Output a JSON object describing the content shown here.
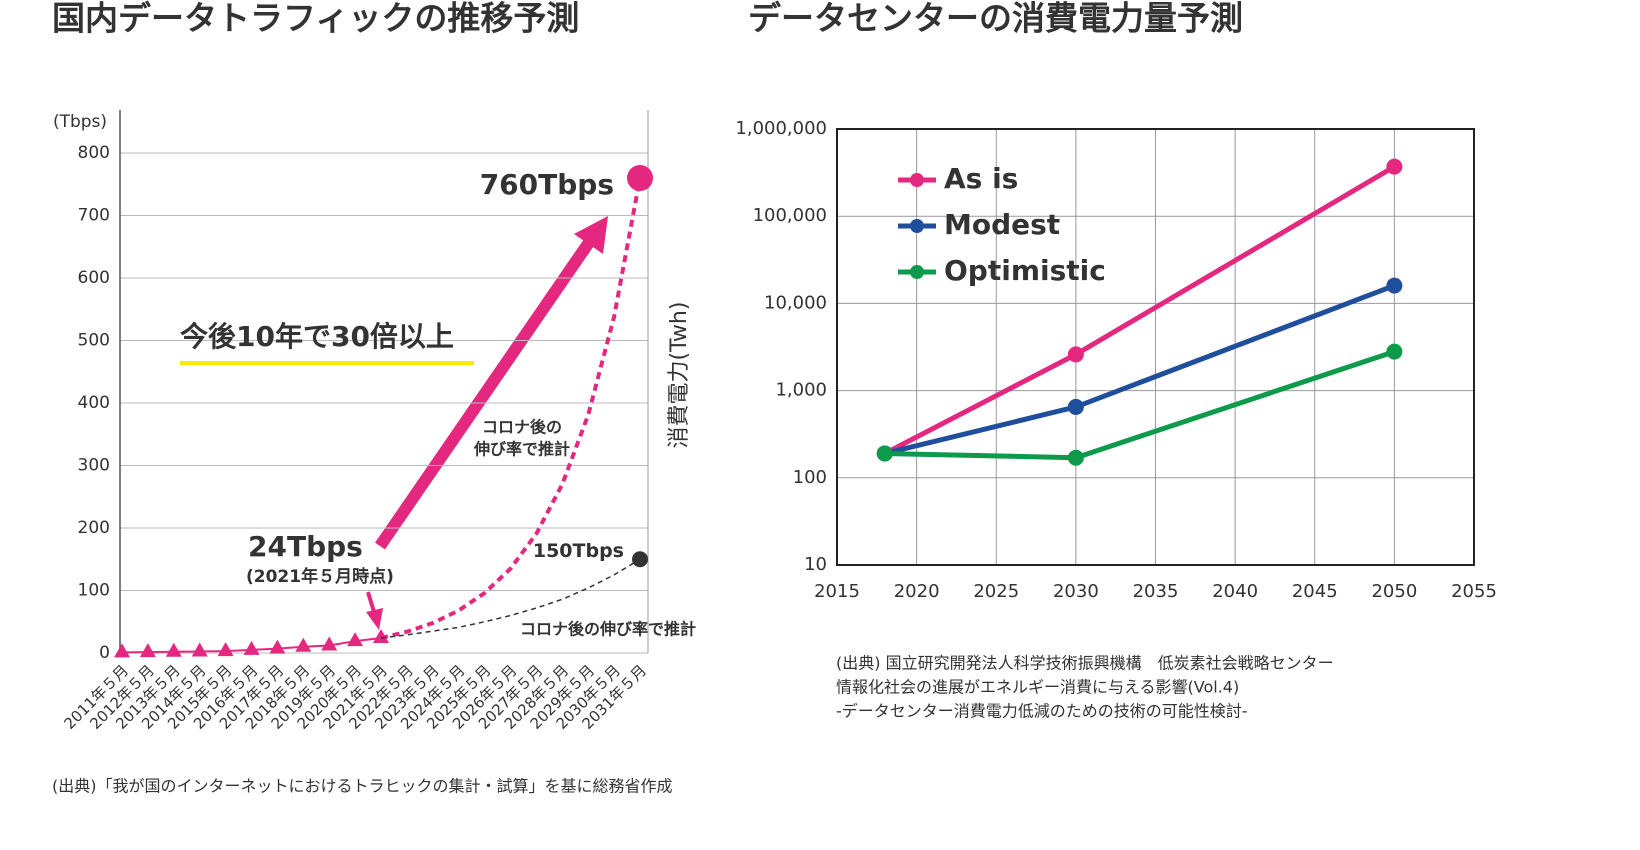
{
  "chart_data": [
    {
      "type": "line",
      "title": "国内データトラフィックの推移予測",
      "ylabel": "(Tbps)",
      "categories": [
        "2011年５月",
        "2012年５月",
        "2013年５月",
        "2014年５月",
        "2015年５月",
        "2016年５月",
        "2017年５月",
        "2018年５月",
        "2019年５月",
        "2020年５月",
        "2021年５月",
        "2022年５月",
        "2023年５月",
        "2024年５月",
        "2025年５月",
        "2026年５月",
        "2027年５月",
        "2028年５月",
        "2029年５月",
        "2030年５月",
        "2031年５月"
      ],
      "ylim": [
        0,
        800
      ],
      "yticks": [
        0,
        100,
        200,
        300,
        400,
        500,
        600,
        700,
        800
      ],
      "grid": true,
      "series": [
        {
          "color": "#e5287f",
          "marker": "triangle",
          "dashed": false,
          "values": [
            1,
            1.5,
            2,
            2.5,
            3,
            5,
            7,
            10,
            12,
            19,
            24,
            null,
            null,
            null,
            null,
            null,
            null,
            null,
            null,
            null,
            null
          ],
          "value_labels": [
            null,
            null,
            null,
            null,
            null,
            null,
            null,
            null,
            null,
            null,
            "24Tbps",
            null,
            null,
            null,
            null,
            null,
            null,
            null,
            null,
            null,
            null
          ]
        },
        {
          "color": "#e5287f",
          "marker": "end-circle",
          "dashed": true,
          "values": [
            null,
            null,
            null,
            null,
            null,
            null,
            null,
            null,
            null,
            null,
            24,
            34,
            48,
            68,
            96,
            135,
            191,
            270,
            381,
            538,
            760
          ],
          "value_labels": [
            null,
            null,
            null,
            null,
            null,
            null,
            null,
            null,
            null,
            null,
            null,
            null,
            null,
            null,
            null,
            null,
            null,
            null,
            null,
            null,
            "760Tbps"
          ]
        },
        {
          "color": "#333333",
          "marker": "end-circle",
          "dashed": true,
          "values": [
            null,
            null,
            null,
            null,
            null,
            null,
            null,
            null,
            null,
            null,
            24,
            29,
            35,
            41,
            50,
            60,
            72,
            86,
            104,
            125,
            150
          ],
          "value_labels": [
            null,
            null,
            null,
            null,
            null,
            null,
            null,
            null,
            null,
            null,
            null,
            null,
            null,
            null,
            null,
            null,
            null,
            null,
            null,
            null,
            "150Tbps"
          ]
        }
      ],
      "annotations": [
        "今後10年で30倍以上",
        "(2021年５月時点)",
        "コロナ後の",
        "伸び率で推計",
        "コロナ後の伸び率で推計"
      ],
      "source": [
        "(出典)「我が国のインターネットにおけるトラヒックの集計・試算」を基に総務省作成"
      ]
    },
    {
      "type": "line",
      "title": "データセンターの消費電力量予測",
      "ylabel": "消費電力(Twh)",
      "log_y": true,
      "x": [
        2018,
        2030,
        2050
      ],
      "xlim": [
        2015,
        2055
      ],
      "xticks": [
        2015,
        2020,
        2025,
        2030,
        2035,
        2040,
        2045,
        2050,
        2055
      ],
      "ylim": [
        10,
        1000000
      ],
      "yticks": [
        10,
        100,
        {
          "value": 1000,
          "label": "1,000"
        },
        {
          "value": 10000,
          "label": "10,000"
        },
        {
          "value": 100000,
          "label": "100,000"
        },
        {
          "value": 1000000,
          "label": "1,000,000"
        }
      ],
      "grid": true,
      "legend": "upper left",
      "series": [
        {
          "name": "As is",
          "color": "#e5287f",
          "marker": "circle",
          "dashed": false,
          "values": [
            190,
            2600,
            370000
          ]
        },
        {
          "name": "Modest",
          "color": "#1f4e9c",
          "marker": "circle",
          "dashed": false,
          "values": [
            190,
            650,
            16000
          ]
        },
        {
          "name": "Optimistic",
          "color": "#0d9a4a",
          "marker": "circle",
          "dashed": false,
          "values": [
            190,
            170,
            2800
          ]
        }
      ],
      "source": [
        "(出典) 国立研究開発法人科学技術振興機構　低炭素社会戦略センター",
        "情報化社会の進展がエネルギー消費に与える影響(Vol.4)",
        "-データセンター消費電力低減のための技術の可能性検討-"
      ]
    }
  ]
}
